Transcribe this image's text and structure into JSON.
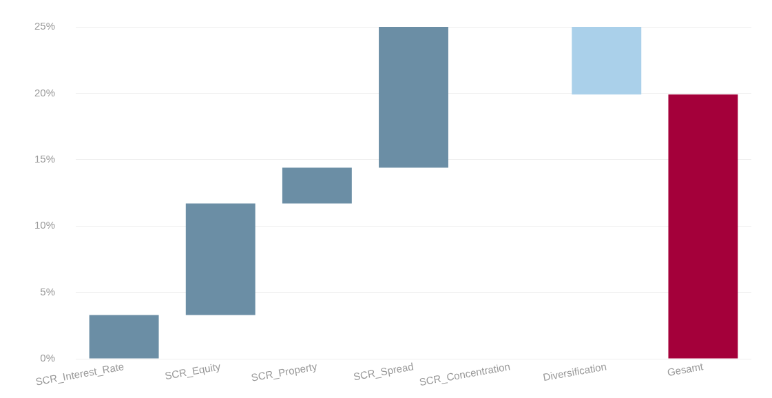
{
  "chart_data": {
    "type": "bar",
    "categories": [
      "SCR_Interest_Rate",
      "SCR_Equity",
      "SCR_Property",
      "SCR_Spread",
      "SCR_Concentration",
      "Diversification",
      "Gesamt"
    ],
    "values": [
      3.3,
      8.4,
      2.7,
      10.6,
      null,
      -5.1,
      19.9
    ],
    "base": [
      0,
      3.3,
      11.7,
      14.4,
      null,
      25,
      0
    ],
    "colors": [
      "#6b8ea5",
      "#6b8ea5",
      "#6b8ea5",
      "#6b8ea5",
      "#6b8ea5",
      "#aad0ea",
      "#a4003a"
    ],
    "ylim": [
      0,
      25
    ],
    "yticks": [
      {
        "value": 0,
        "label": "0%"
      },
      {
        "value": 5,
        "label": "5%"
      },
      {
        "value": 10,
        "label": "10%"
      },
      {
        "value": 15,
        "label": "15%"
      },
      {
        "value": 20,
        "label": "20%"
      },
      {
        "value": 25,
        "label": "25%"
      }
    ],
    "grid": "y"
  }
}
